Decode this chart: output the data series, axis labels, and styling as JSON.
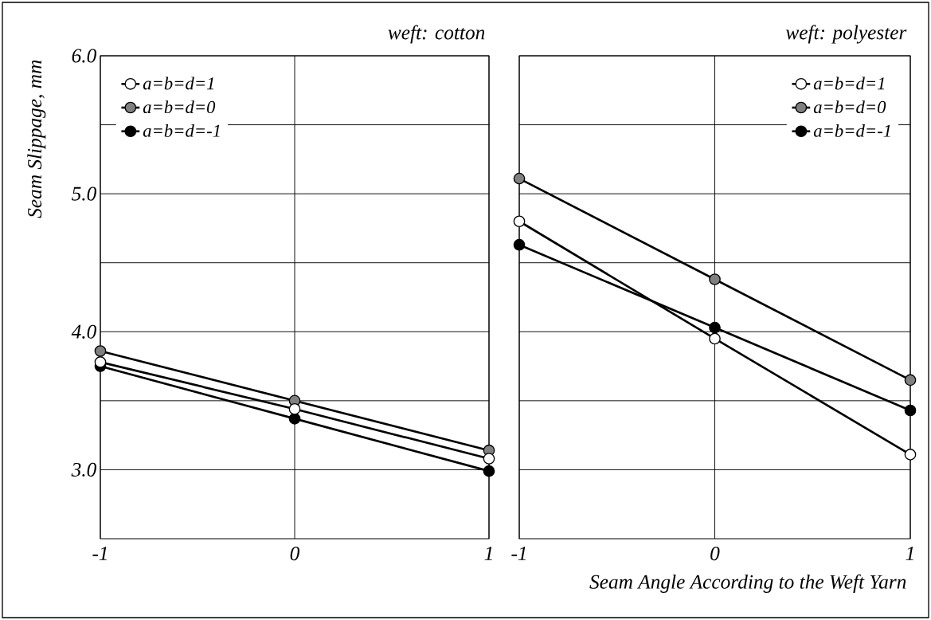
{
  "chart_data": [
    {
      "type": "line",
      "title": "weft: cotton",
      "ylabel": "Seam Slippage, mm",
      "x": [
        -1,
        0,
        1
      ],
      "xlim": [
        -1,
        1
      ],
      "xticks": [
        -1,
        0,
        1
      ],
      "ylim": [
        2.5,
        6.0
      ],
      "yticks": [
        {
          "value": 3.0,
          "label": "3.0"
        },
        {
          "value": 3.5,
          "label": null
        },
        {
          "value": 4.0,
          "label": "4.0"
        },
        {
          "value": 4.5,
          "label": null
        },
        {
          "value": 5.0,
          "label": "5.0"
        },
        {
          "value": 5.5,
          "label": null
        },
        {
          "value": 6.0,
          "label": "6.0"
        }
      ],
      "grid": true,
      "legend": "top left",
      "marker": "circle",
      "line_style": "solid",
      "series": [
        {
          "name": "a=b=d=1",
          "color": "#ffffff",
          "values": [
            3.78,
            3.44,
            3.08
          ]
        },
        {
          "name": "a=b=d=0",
          "color": "#808080",
          "values": [
            3.86,
            3.5,
            3.14
          ]
        },
        {
          "name": "a=b=d=-1",
          "color": "#000000",
          "values": [
            3.75,
            3.37,
            2.99
          ]
        }
      ]
    },
    {
      "type": "line",
      "title": "weft: polyester",
      "xlabel": "Seam Angle According to the Weft Yarn",
      "x": [
        -1,
        0,
        1
      ],
      "xlim": [
        -1,
        1
      ],
      "xticks": [
        -1,
        0,
        1
      ],
      "ylim": [
        2.5,
        6.0
      ],
      "yticks": [
        3.0,
        3.5,
        4.0,
        4.5,
        5.0,
        5.5,
        6.0
      ],
      "tick_labels": "x",
      "grid": true,
      "legend": "top right",
      "marker": "circle",
      "line_style": "solid",
      "series": [
        {
          "name": "a=b=d=1",
          "color": "#ffffff",
          "values": [
            4.8,
            3.95,
            3.11
          ]
        },
        {
          "name": "a=b=d=0",
          "color": "#808080",
          "values": [
            5.11,
            4.38,
            3.65
          ]
        },
        {
          "name": "a=b=d=-1",
          "color": "#000000",
          "values": [
            4.63,
            4.03,
            3.43
          ]
        }
      ]
    }
  ]
}
